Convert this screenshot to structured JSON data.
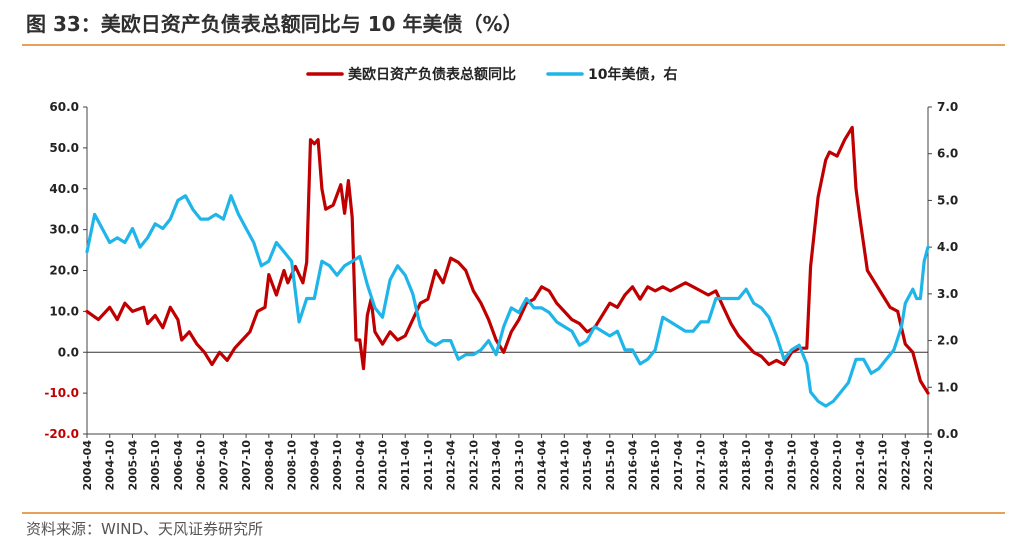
{
  "title": "图 33：美欧日资产负债表总额同比与 10 年美债（%）",
  "source": "资料来源：WIND、天风证券研究所",
  "chart_data": {
    "type": "line",
    "x_start": "2004-04",
    "x_end": "2022-10",
    "x_tick_labels": [
      "2004-04",
      "2004-10",
      "2005-04",
      "2005-10",
      "2006-04",
      "2006-10",
      "2007-04",
      "2007-10",
      "2008-04",
      "2008-10",
      "2009-04",
      "2009-10",
      "2010-04",
      "2010-10",
      "2011-04",
      "2011-10",
      "2012-04",
      "2012-10",
      "2013-04",
      "2013-10",
      "2014-04",
      "2014-10",
      "2015-04",
      "2015-10",
      "2016-04",
      "2016-10",
      "2017-04",
      "2017-10",
      "2018-04",
      "2018-10",
      "2019-04",
      "2019-10",
      "2020-04",
      "2020-10",
      "2021-04",
      "2021-10",
      "2022-04",
      "2022-10"
    ],
    "y_left": {
      "min": -20,
      "max": 60,
      "step": 10,
      "tick_labels": [
        "-20.0",
        "-10.0",
        "0.0",
        "10.0",
        "20.0",
        "30.0",
        "40.0",
        "50.0",
        "60.0"
      ]
    },
    "y_right": {
      "min": 0,
      "max": 7,
      "step": 1,
      "tick_labels": [
        "0.0",
        "1.0",
        "2.0",
        "3.0",
        "4.0",
        "5.0",
        "6.0",
        "7.0"
      ]
    },
    "negative_tick_color": "#c00000",
    "series": [
      {
        "name": "美欧日资产负债表总额同比",
        "axis": "left",
        "color": "#c00000",
        "points": [
          [
            "2004-04",
            10
          ],
          [
            "2004-07",
            8
          ],
          [
            "2004-10",
            11
          ],
          [
            "2004-12",
            8
          ],
          [
            "2005-02",
            12
          ],
          [
            "2005-04",
            10
          ],
          [
            "2005-07",
            11
          ],
          [
            "2005-08",
            7
          ],
          [
            "2005-10",
            9
          ],
          [
            "2005-12",
            6
          ],
          [
            "2006-02",
            11
          ],
          [
            "2006-04",
            8
          ],
          [
            "2006-05",
            3
          ],
          [
            "2006-07",
            5
          ],
          [
            "2006-09",
            2
          ],
          [
            "2006-11",
            0
          ],
          [
            "2007-01",
            -3
          ],
          [
            "2007-03",
            0
          ],
          [
            "2007-05",
            -2
          ],
          [
            "2007-07",
            1
          ],
          [
            "2007-09",
            3
          ],
          [
            "2007-11",
            5
          ],
          [
            "2008-01",
            10
          ],
          [
            "2008-03",
            11
          ],
          [
            "2008-04",
            19
          ],
          [
            "2008-06",
            14
          ],
          [
            "2008-08",
            20
          ],
          [
            "2008-09",
            17
          ],
          [
            "2008-11",
            21
          ],
          [
            "2009-01",
            17
          ],
          [
            "2009-02",
            22
          ],
          [
            "2009-03",
            52
          ],
          [
            "2009-04",
            51
          ],
          [
            "2009-05",
            52
          ],
          [
            "2009-06",
            40
          ],
          [
            "2009-07",
            35
          ],
          [
            "2009-09",
            36
          ],
          [
            "2009-11",
            41
          ],
          [
            "2009-12",
            34
          ],
          [
            "2010-01",
            42
          ],
          [
            "2010-02",
            33
          ],
          [
            "2010-03",
            3
          ],
          [
            "2010-04",
            3
          ],
          [
            "2010-05",
            -4
          ],
          [
            "2010-06",
            9
          ],
          [
            "2010-07",
            13
          ],
          [
            "2010-08",
            5
          ],
          [
            "2010-10",
            2
          ],
          [
            "2010-12",
            5
          ],
          [
            "2011-02",
            3
          ],
          [
            "2011-04",
            4
          ],
          [
            "2011-06",
            8
          ],
          [
            "2011-08",
            12
          ],
          [
            "2011-10",
            13
          ],
          [
            "2011-12",
            20
          ],
          [
            "2012-02",
            17
          ],
          [
            "2012-04",
            23
          ],
          [
            "2012-06",
            22
          ],
          [
            "2012-08",
            20
          ],
          [
            "2012-10",
            15
          ],
          [
            "2012-12",
            12
          ],
          [
            "2013-02",
            8
          ],
          [
            "2013-04",
            3
          ],
          [
            "2013-06",
            0
          ],
          [
            "2013-08",
            5
          ],
          [
            "2013-10",
            8
          ],
          [
            "2013-12",
            12
          ],
          [
            "2014-02",
            13
          ],
          [
            "2014-04",
            16
          ],
          [
            "2014-06",
            15
          ],
          [
            "2014-08",
            12
          ],
          [
            "2014-10",
            10
          ],
          [
            "2014-12",
            8
          ],
          [
            "2015-02",
            7
          ],
          [
            "2015-04",
            5
          ],
          [
            "2015-06",
            6
          ],
          [
            "2015-08",
            9
          ],
          [
            "2015-10",
            12
          ],
          [
            "2015-12",
            11
          ],
          [
            "2016-02",
            14
          ],
          [
            "2016-04",
            16
          ],
          [
            "2016-06",
            13
          ],
          [
            "2016-08",
            16
          ],
          [
            "2016-10",
            15
          ],
          [
            "2016-12",
            16
          ],
          [
            "2017-02",
            15
          ],
          [
            "2017-04",
            16
          ],
          [
            "2017-06",
            17
          ],
          [
            "2017-08",
            16
          ],
          [
            "2017-10",
            15
          ],
          [
            "2017-12",
            14
          ],
          [
            "2018-02",
            15
          ],
          [
            "2018-04",
            11
          ],
          [
            "2018-06",
            7
          ],
          [
            "2018-08",
            4
          ],
          [
            "2018-10",
            2
          ],
          [
            "2018-12",
            0
          ],
          [
            "2019-02",
            -1
          ],
          [
            "2019-04",
            -3
          ],
          [
            "2019-06",
            -2
          ],
          [
            "2019-08",
            -3
          ],
          [
            "2019-10",
            0
          ],
          [
            "2019-12",
            1
          ],
          [
            "2020-02",
            1
          ],
          [
            "2020-03",
            21
          ],
          [
            "2020-05",
            38
          ],
          [
            "2020-07",
            47
          ],
          [
            "2020-08",
            49
          ],
          [
            "2020-10",
            48
          ],
          [
            "2020-12",
            52
          ],
          [
            "2021-02",
            55
          ],
          [
            "2021-03",
            40
          ],
          [
            "2021-04",
            33
          ],
          [
            "2021-06",
            20
          ],
          [
            "2021-08",
            17
          ],
          [
            "2021-10",
            14
          ],
          [
            "2021-12",
            11
          ],
          [
            "2022-02",
            10
          ],
          [
            "2022-04",
            2
          ],
          [
            "2022-06",
            0
          ],
          [
            "2022-08",
            -7
          ],
          [
            "2022-10",
            -10
          ]
        ]
      },
      {
        "name": "10年美债，右",
        "axis": "right",
        "color": "#1fb5e9",
        "points": [
          [
            "2004-04",
            3.9
          ],
          [
            "2004-06",
            4.7
          ],
          [
            "2004-08",
            4.4
          ],
          [
            "2004-10",
            4.1
          ],
          [
            "2004-12",
            4.2
          ],
          [
            "2005-02",
            4.1
          ],
          [
            "2005-04",
            4.4
          ],
          [
            "2005-06",
            4.0
          ],
          [
            "2005-08",
            4.2
          ],
          [
            "2005-10",
            4.5
          ],
          [
            "2005-12",
            4.4
          ],
          [
            "2006-02",
            4.6
          ],
          [
            "2006-04",
            5.0
          ],
          [
            "2006-06",
            5.1
          ],
          [
            "2006-08",
            4.8
          ],
          [
            "2006-10",
            4.6
          ],
          [
            "2006-12",
            4.6
          ],
          [
            "2007-02",
            4.7
          ],
          [
            "2007-04",
            4.6
          ],
          [
            "2007-06",
            5.1
          ],
          [
            "2007-08",
            4.7
          ],
          [
            "2007-10",
            4.4
          ],
          [
            "2007-12",
            4.1
          ],
          [
            "2008-02",
            3.6
          ],
          [
            "2008-04",
            3.7
          ],
          [
            "2008-06",
            4.1
          ],
          [
            "2008-08",
            3.9
          ],
          [
            "2008-10",
            3.7
          ],
          [
            "2008-12",
            2.4
          ],
          [
            "2009-02",
            2.9
          ],
          [
            "2009-04",
            2.9
          ],
          [
            "2009-06",
            3.7
          ],
          [
            "2009-08",
            3.6
          ],
          [
            "2009-10",
            3.4
          ],
          [
            "2009-12",
            3.6
          ],
          [
            "2010-02",
            3.7
          ],
          [
            "2010-04",
            3.8
          ],
          [
            "2010-06",
            3.2
          ],
          [
            "2010-08",
            2.7
          ],
          [
            "2010-10",
            2.5
          ],
          [
            "2010-12",
            3.3
          ],
          [
            "2011-02",
            3.6
          ],
          [
            "2011-04",
            3.4
          ],
          [
            "2011-06",
            3.0
          ],
          [
            "2011-08",
            2.3
          ],
          [
            "2011-10",
            2.0
          ],
          [
            "2011-12",
            1.9
          ],
          [
            "2012-02",
            2.0
          ],
          [
            "2012-04",
            2.0
          ],
          [
            "2012-06",
            1.6
          ],
          [
            "2012-08",
            1.7
          ],
          [
            "2012-10",
            1.7
          ],
          [
            "2012-12",
            1.8
          ],
          [
            "2013-02",
            2.0
          ],
          [
            "2013-04",
            1.7
          ],
          [
            "2013-06",
            2.3
          ],
          [
            "2013-08",
            2.7
          ],
          [
            "2013-10",
            2.6
          ],
          [
            "2013-12",
            2.9
          ],
          [
            "2014-02",
            2.7
          ],
          [
            "2014-04",
            2.7
          ],
          [
            "2014-06",
            2.6
          ],
          [
            "2014-08",
            2.4
          ],
          [
            "2014-10",
            2.3
          ],
          [
            "2014-12",
            2.2
          ],
          [
            "2015-02",
            1.9
          ],
          [
            "2015-04",
            2.0
          ],
          [
            "2015-06",
            2.3
          ],
          [
            "2015-08",
            2.2
          ],
          [
            "2015-10",
            2.1
          ],
          [
            "2015-12",
            2.2
          ],
          [
            "2016-02",
            1.8
          ],
          [
            "2016-04",
            1.8
          ],
          [
            "2016-06",
            1.5
          ],
          [
            "2016-08",
            1.6
          ],
          [
            "2016-10",
            1.8
          ],
          [
            "2016-12",
            2.5
          ],
          [
            "2017-02",
            2.4
          ],
          [
            "2017-04",
            2.3
          ],
          [
            "2017-06",
            2.2
          ],
          [
            "2017-08",
            2.2
          ],
          [
            "2017-10",
            2.4
          ],
          [
            "2017-12",
            2.4
          ],
          [
            "2018-02",
            2.9
          ],
          [
            "2018-04",
            2.9
          ],
          [
            "2018-06",
            2.9
          ],
          [
            "2018-08",
            2.9
          ],
          [
            "2018-10",
            3.1
          ],
          [
            "2018-12",
            2.8
          ],
          [
            "2019-02",
            2.7
          ],
          [
            "2019-04",
            2.5
          ],
          [
            "2019-06",
            2.1
          ],
          [
            "2019-08",
            1.6
          ],
          [
            "2019-10",
            1.8
          ],
          [
            "2019-12",
            1.9
          ],
          [
            "2020-02",
            1.5
          ],
          [
            "2020-03",
            0.9
          ],
          [
            "2020-05",
            0.7
          ],
          [
            "2020-07",
            0.6
          ],
          [
            "2020-09",
            0.7
          ],
          [
            "2020-11",
            0.9
          ],
          [
            "2021-01",
            1.1
          ],
          [
            "2021-03",
            1.6
          ],
          [
            "2021-05",
            1.6
          ],
          [
            "2021-07",
            1.3
          ],
          [
            "2021-09",
            1.4
          ],
          [
            "2021-11",
            1.6
          ],
          [
            "2022-01",
            1.8
          ],
          [
            "2022-03",
            2.3
          ],
          [
            "2022-04",
            2.8
          ],
          [
            "2022-06",
            3.1
          ],
          [
            "2022-07",
            2.9
          ],
          [
            "2022-08",
            2.9
          ],
          [
            "2022-09",
            3.7
          ],
          [
            "2022-10",
            4.0
          ]
        ]
      }
    ],
    "grid": false,
    "legend_position": "top-center"
  }
}
